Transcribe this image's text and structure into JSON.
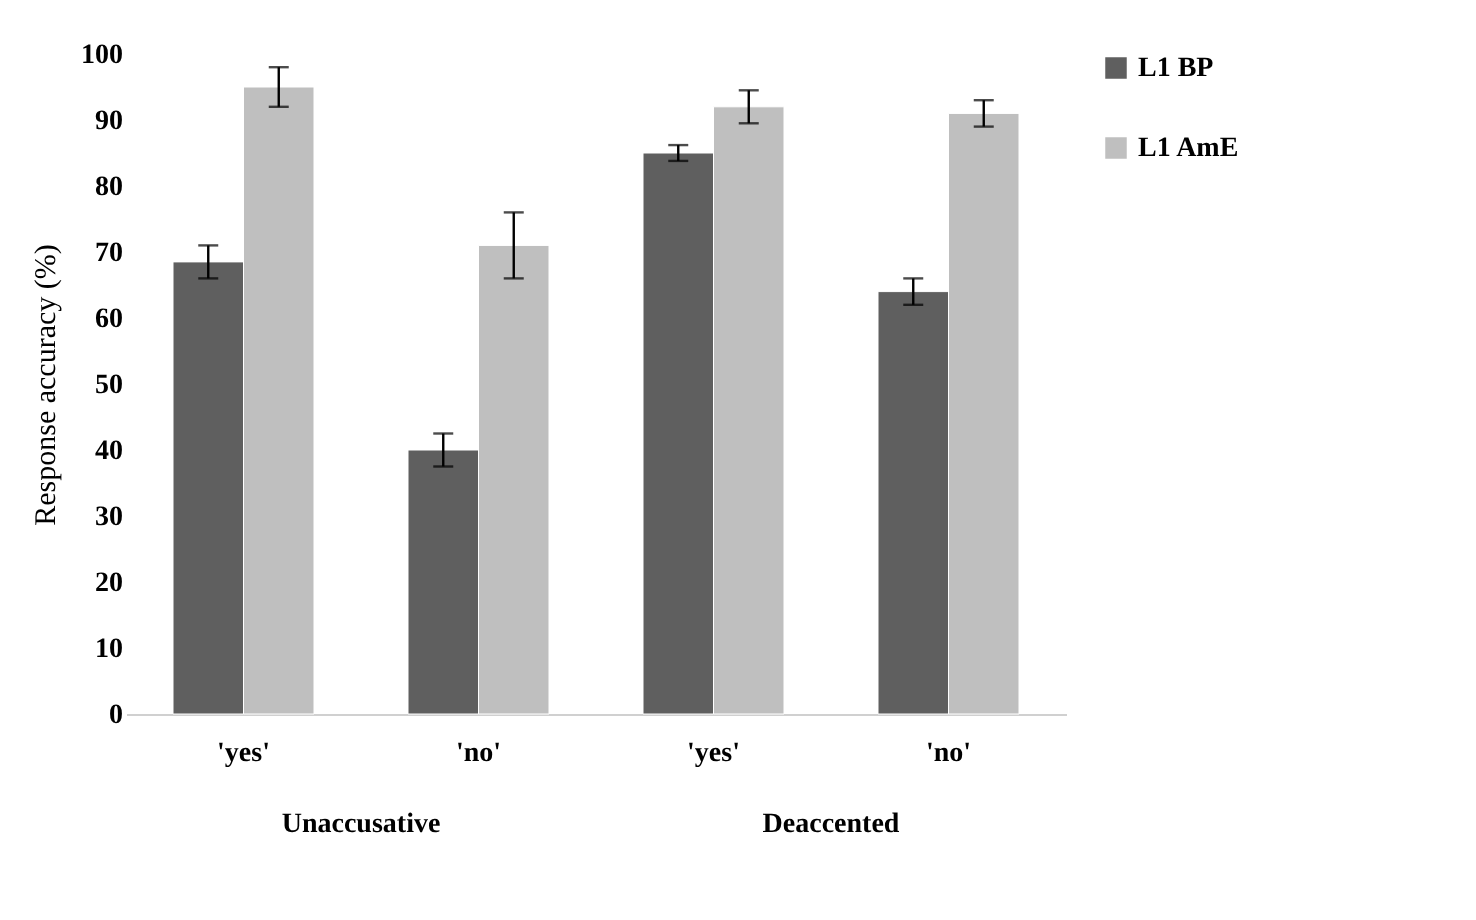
{
  "chart_data": {
    "type": "bar",
    "ylabel": "Response accuracy (%)",
    "categories": [
      "'yes'",
      "'no'",
      "'yes'",
      "'no'"
    ],
    "series": [
      {
        "name": "L1 BP",
        "color": "#5f5f5f",
        "values": [
          68.5,
          40,
          85,
          64
        ],
        "errors": [
          2.5,
          2.5,
          1.2,
          2
        ]
      },
      {
        "name": "L1 AmE",
        "color": "#bfbfbf",
        "values": [
          95,
          71,
          92,
          91
        ],
        "errors": [
          3,
          5,
          2.5,
          2
        ]
      }
    ],
    "ylim": [
      0,
      100
    ],
    "yticks": [
      0,
      10,
      20,
      30,
      40,
      50,
      60,
      70,
      80,
      90,
      100
    ],
    "grid": false,
    "legend": "right",
    "annotations": [
      "Unaccusative",
      "Deaccented"
    ]
  }
}
